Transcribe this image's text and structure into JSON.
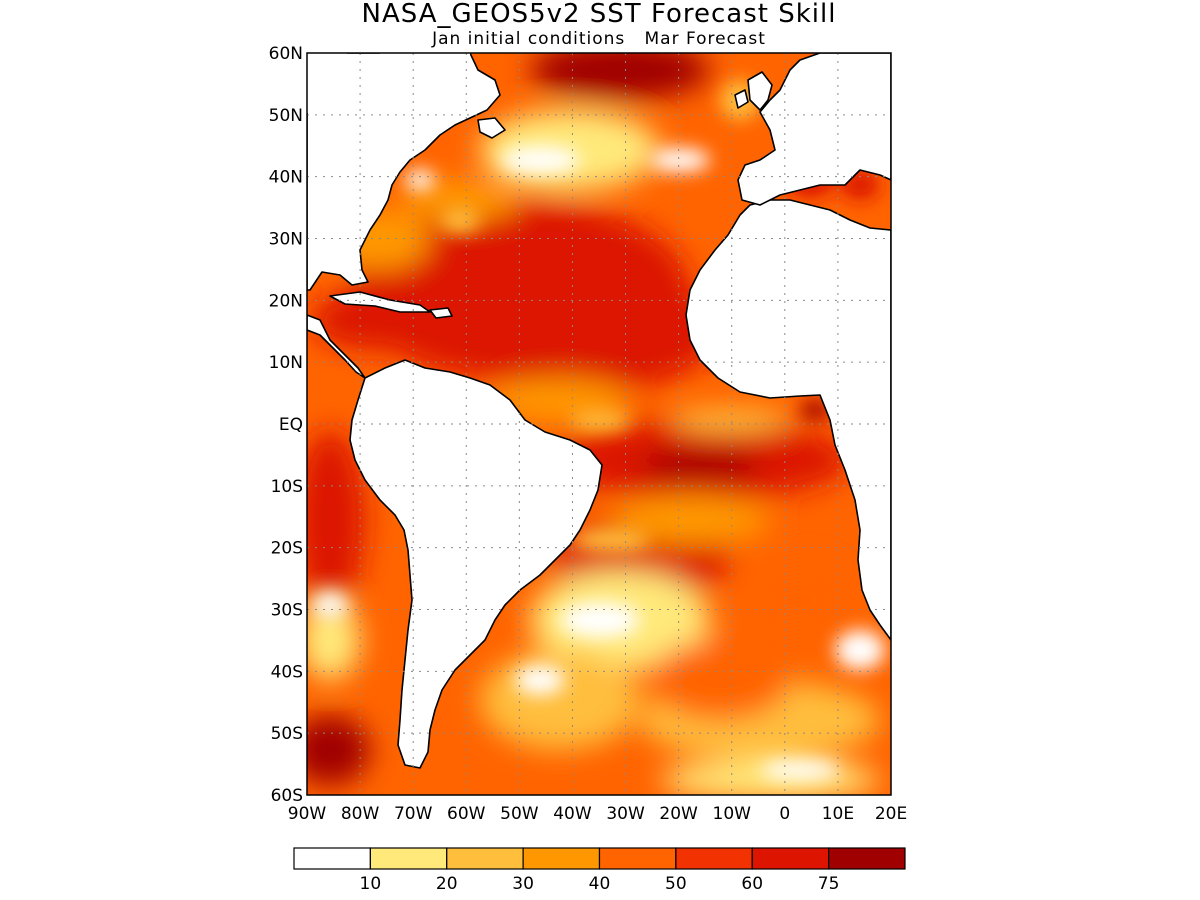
{
  "title": "NASA_GEOS5v2  SST Forecast Skill",
  "subtitle": "Jan initial conditions   Mar Forecast",
  "map": {
    "region": "Atlantic Ocean",
    "lon_range": [
      -90,
      20
    ],
    "lat_range": [
      -60,
      60
    ],
    "grid": true,
    "lat_tick_labels": [
      "60N",
      "50N",
      "40N",
      "30N",
      "20N",
      "10N",
      "EQ",
      "10S",
      "20S",
      "30S",
      "40S",
      "50S",
      "60S"
    ],
    "lon_tick_labels": [
      "90W",
      "80W",
      "70W",
      "60W",
      "50W",
      "40W",
      "30W",
      "20W",
      "10W",
      "0",
      "10E",
      "20E"
    ]
  },
  "legend": {
    "tick_labels": [
      "10",
      "20",
      "30",
      "40",
      "50",
      "60",
      "75"
    ],
    "colors": [
      "#ffffff",
      "#ffe97a",
      "#ffbe3c",
      "#ff9800",
      "#ff6400",
      "#f23200",
      "#dc1400",
      "#a00000"
    ]
  },
  "colors": {
    "land": "#ffffff",
    "coast": "#000000",
    "grid": "#8a8a8a"
  }
}
